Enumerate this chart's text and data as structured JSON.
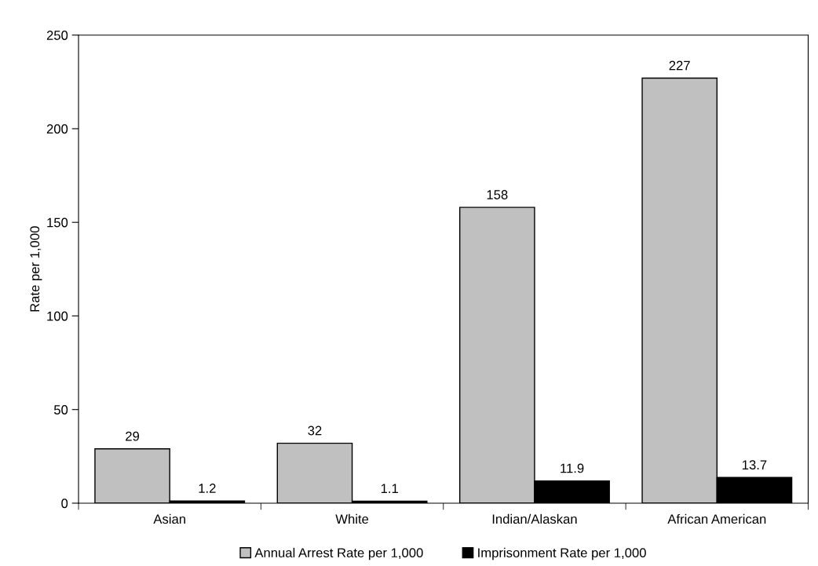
{
  "chart_data": {
    "type": "bar",
    "ylabel": "Rate per 1,000",
    "categories": [
      "Asian",
      "White",
      "Indian/Alaskan",
      "African American"
    ],
    "series": [
      {
        "name": "Annual Arrest Rate per 1,000",
        "color": "#c0c0c0",
        "values": [
          29,
          32,
          158,
          227
        ]
      },
      {
        "name": "Imprisonment Rate per 1,000",
        "color": "#000000",
        "values": [
          1.2,
          1.1,
          11.9,
          13.7
        ]
      }
    ],
    "ylim": [
      0,
      250
    ],
    "yticks": [
      0,
      50,
      100,
      150,
      200,
      250
    ],
    "grid": false,
    "legend": "bottom",
    "data_labels": true
  }
}
